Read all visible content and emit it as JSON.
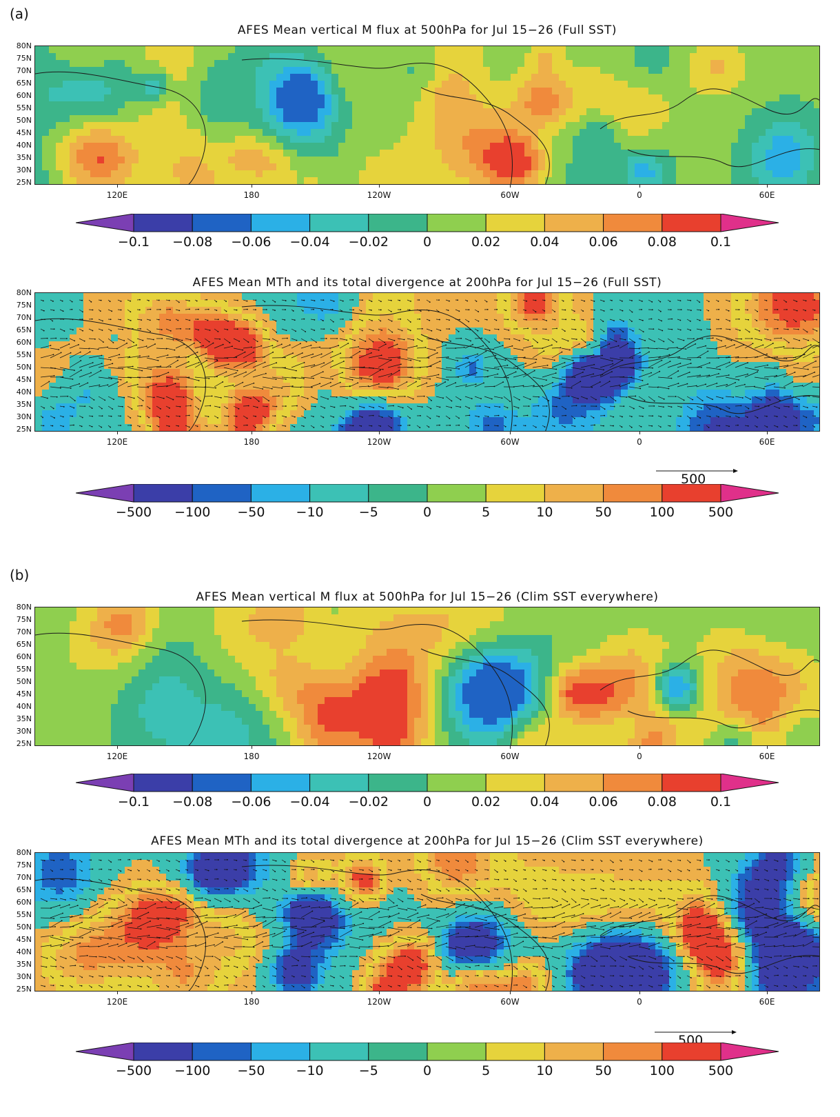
{
  "figure_labels": {
    "a": "(a)",
    "b": "(b)"
  },
  "panels": [
    {
      "title": "AFES Mean vertical M flux at 500hPa for Jul 15−26 (Full SST)",
      "kind": "flux"
    },
    {
      "title": "AFES Mean MTh and its total divergence at 200hPa for Jul 15−26 (Full SST)",
      "kind": "div"
    },
    {
      "title": "AFES Mean vertical M flux at 500hPa for Jul 15−26 (Clim SST everywhere)",
      "kind": "flux"
    },
    {
      "title": "AFES Mean MTh and its total divergence at 200hPa for Jul 15−26 (Clim SST everywhere)",
      "kind": "div"
    }
  ],
  "lat_labels": [
    "80N",
    "75N",
    "70N",
    "65N",
    "60N",
    "55N",
    "50N",
    "45N",
    "40N",
    "35N",
    "30N",
    "25N"
  ],
  "lon_labels": [
    "120E",
    "180",
    "120W",
    "60W",
    "0",
    "60E"
  ],
  "flux_colorbar": {
    "labels": [
      "−0.1",
      "−0.08",
      "−0.06",
      "−0.04",
      "−0.02",
      "0",
      "0.02",
      "0.04",
      "0.06",
      "0.08",
      "0.1"
    ]
  },
  "div_colorbar": {
    "labels": [
      "−500",
      "−100",
      "−50",
      "−10",
      "−5",
      "0",
      "5",
      "10",
      "50",
      "100",
      "500"
    ]
  },
  "reference_vector": {
    "label": "500"
  },
  "colors": {
    "levels": [
      "#7b3fb3",
      "#3b3ea8",
      "#1f63c4",
      "#2bb0e6",
      "#3cc1b5",
      "#3cb58a",
      "#8fcf4f",
      "#e6d33c",
      "#eeb04a",
      "#f08a3c",
      "#e8402e",
      "#e0308a"
    ]
  }
}
